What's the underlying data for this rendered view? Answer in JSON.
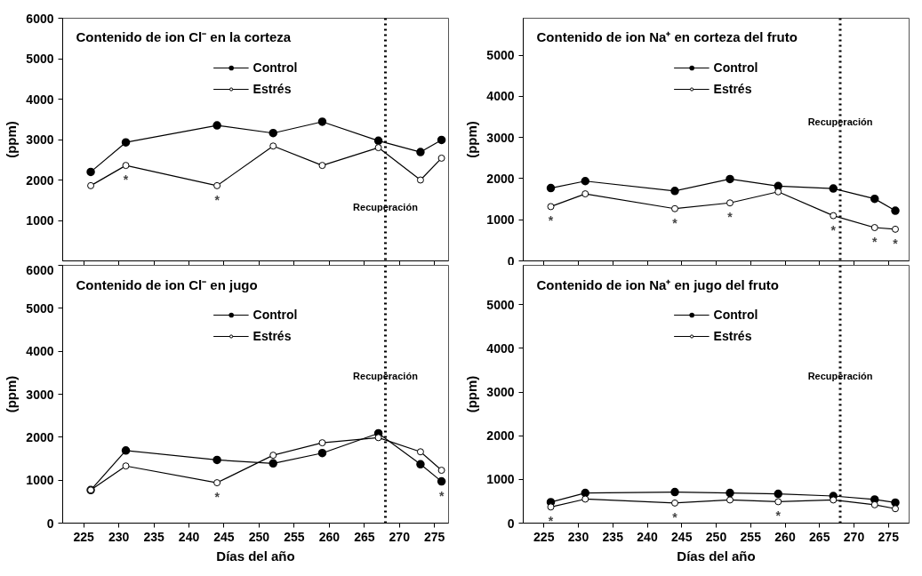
{
  "chart_data": [
    {
      "type": "line",
      "title": "Contenido de ion Cl⁻ en la corteza",
      "ylabel": "(ppm)",
      "x": [
        226,
        231,
        244,
        252,
        259,
        267,
        273,
        276
      ],
      "xlim": [
        222,
        277
      ],
      "ylim": [
        0,
        6000
      ],
      "xticks": [
        225,
        230,
        235,
        240,
        245,
        250,
        255,
        260,
        265,
        270,
        275
      ],
      "yticks": [
        1000,
        2000,
        3000,
        4000,
        5000,
        6000
      ],
      "tick_labels": "y",
      "marker": "circle",
      "legend": "top",
      "grid": false,
      "series": [
        {
          "name": "Control",
          "color": "#000000",
          "values": [
            2200,
            2930,
            3350,
            3160,
            3440,
            2970,
            2690,
            2990
          ]
        },
        {
          "name": "Estrés",
          "color": "#000000",
          "values": [
            1860,
            2360,
            1860,
            2840,
            2360,
            2800,
            2000,
            2540
          ]
        }
      ],
      "ref_lines": [
        {
          "axis": "x",
          "value": 268,
          "label": "Recuperación",
          "line_style": "dotted"
        }
      ],
      "annotations": [
        {
          "text": "*",
          "x": 231,
          "y": 2360
        },
        {
          "text": "*",
          "x": 244,
          "y": 1860
        }
      ]
    },
    {
      "type": "line",
      "title": "Contenido de ion Na⁺ en corteza del fruto",
      "ylabel": "(ppm)",
      "x": [
        226,
        231,
        244,
        252,
        259,
        267,
        273,
        276
      ],
      "xlim": [
        222,
        278
      ],
      "ylim": [
        0,
        5900
      ],
      "xticks": [
        225,
        230,
        235,
        240,
        245,
        250,
        255,
        260,
        265,
        270,
        275
      ],
      "yticks": [
        0,
        1000,
        2000,
        3000,
        4000,
        5000
      ],
      "tick_labels": "y",
      "marker": "circle",
      "legend": "top",
      "grid": false,
      "series": [
        {
          "name": "Control",
          "color": "#000000",
          "values": [
            1770,
            1940,
            1700,
            1990,
            1820,
            1760,
            1510,
            1220
          ]
        },
        {
          "name": "Estrés",
          "color": "#000000",
          "values": [
            1320,
            1630,
            1270,
            1410,
            1680,
            1100,
            810,
            770
          ]
        }
      ],
      "ref_lines": [
        {
          "axis": "x",
          "value": 268,
          "label": "Recuperación",
          "line_style": "dotted"
        }
      ],
      "annotations": [
        {
          "text": "*",
          "x": 226,
          "y": 1320
        },
        {
          "text": "*",
          "x": 244,
          "y": 1270
        },
        {
          "text": "*",
          "x": 252,
          "y": 1410
        },
        {
          "text": "*",
          "x": 267,
          "y": 1100
        },
        {
          "text": "*",
          "x": 273,
          "y": 810
        },
        {
          "text": "*",
          "x": 276,
          "y": 770
        }
      ]
    },
    {
      "type": "line",
      "title": "Contenido de ion Cl⁻ en jugo",
      "ylabel": "(ppm)",
      "xlabel": "Días del año",
      "x": [
        226,
        231,
        244,
        252,
        259,
        267,
        273,
        276
      ],
      "xlim": [
        222,
        277
      ],
      "ylim": [
        0,
        6000
      ],
      "xticks": [
        225,
        230,
        235,
        240,
        245,
        250,
        255,
        260,
        265,
        270,
        275
      ],
      "yticks": [
        0,
        1000,
        2000,
        3000,
        4000,
        5000,
        6000
      ],
      "marker": "circle",
      "legend": "top",
      "grid": false,
      "series": [
        {
          "name": "Control",
          "color": "#000000",
          "values": [
            770,
            1690,
            1470,
            1390,
            1630,
            2090,
            1370,
            970
          ]
        },
        {
          "name": "Estrés",
          "color": "#000000",
          "values": [
            770,
            1330,
            940,
            1580,
            1870,
            1990,
            1660,
            1230
          ]
        }
      ],
      "ref_lines": [
        {
          "axis": "x",
          "value": 268,
          "label": "Recuperación",
          "line_style": "dotted"
        }
      ],
      "annotations": [
        {
          "text": "*",
          "x": 244,
          "y": 940
        },
        {
          "text": "*",
          "x": 276,
          "y": 970
        }
      ]
    },
    {
      "type": "line",
      "title": "Contenido de ion Na⁺ en jugo del fruto",
      "ylabel": "(ppm)",
      "xlabel": "Días del año",
      "x": [
        226,
        231,
        244,
        252,
        259,
        267,
        273,
        276
      ],
      "xlim": [
        222,
        278
      ],
      "ylim": [
        0,
        5900
      ],
      "xticks": [
        225,
        230,
        235,
        240,
        245,
        250,
        255,
        260,
        265,
        270,
        275
      ],
      "yticks": [
        0,
        1000,
        2000,
        3000,
        4000,
        5000
      ],
      "marker": "circle",
      "legend": "top",
      "grid": false,
      "series": [
        {
          "name": "Control",
          "color": "#000000",
          "values": [
            480,
            690,
            710,
            690,
            670,
            620,
            540,
            470
          ]
        },
        {
          "name": "Estrés",
          "color": "#000000",
          "values": [
            370,
            550,
            460,
            530,
            490,
            530,
            420,
            330
          ]
        }
      ],
      "ref_lines": [
        {
          "axis": "x",
          "value": 268,
          "label": "Recuperación",
          "line_style": "dotted"
        }
      ],
      "annotations": [
        {
          "text": "*",
          "x": 226,
          "y": 370
        },
        {
          "text": "*",
          "x": 244,
          "y": 460
        },
        {
          "text": "*",
          "x": 259,
          "y": 490
        }
      ]
    }
  ]
}
